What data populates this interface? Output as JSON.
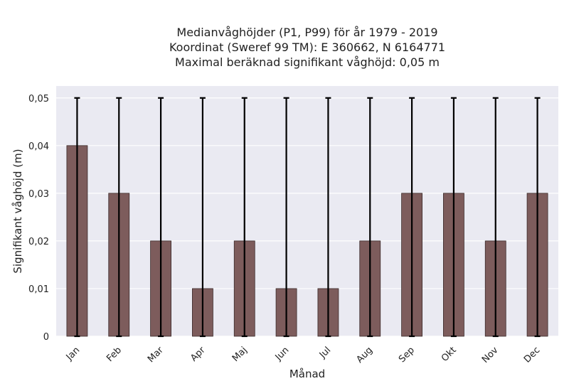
{
  "chart_data": {
    "type": "bar",
    "title_lines": [
      "Medianvåghöjder (P1, P99) för år 1979 - 2019",
      "Koordinat (Sweref 99 TM): E 360662, N 6164771",
      "Maximal beräknad signifikant våghöjd: 0,05 m"
    ],
    "xlabel": "Månad",
    "ylabel": "Signifikant våghöjd (m)",
    "categories": [
      "Jan",
      "Feb",
      "Mar",
      "Apr",
      "Maj",
      "Jun",
      "Jul",
      "Aug",
      "Sep",
      "Okt",
      "Nov",
      "Dec"
    ],
    "values": [
      0.04,
      0.03,
      0.02,
      0.01,
      0.02,
      0.01,
      0.01,
      0.02,
      0.03,
      0.03,
      0.02,
      0.03
    ],
    "error_low": [
      0,
      0,
      0,
      0,
      0,
      0,
      0,
      0,
      0,
      0,
      0,
      0
    ],
    "error_high": [
      0.05,
      0.05,
      0.05,
      0.05,
      0.05,
      0.05,
      0.05,
      0.05,
      0.05,
      0.05,
      0.05,
      0.05
    ],
    "ylim": [
      0,
      0.0525
    ],
    "yticks": [
      0,
      0.01,
      0.02,
      0.03,
      0.04,
      0.05
    ],
    "ytick_labels": [
      "0",
      "0,01",
      "0,02",
      "0,03",
      "0,04",
      "0,05"
    ],
    "grid": true,
    "colors": {
      "bar": "#7d5c5c",
      "bar_edge": "#3a2a2a",
      "plot_background": "#eaeaf2",
      "grid": "#ffffff",
      "error_bar": "#000000"
    }
  }
}
